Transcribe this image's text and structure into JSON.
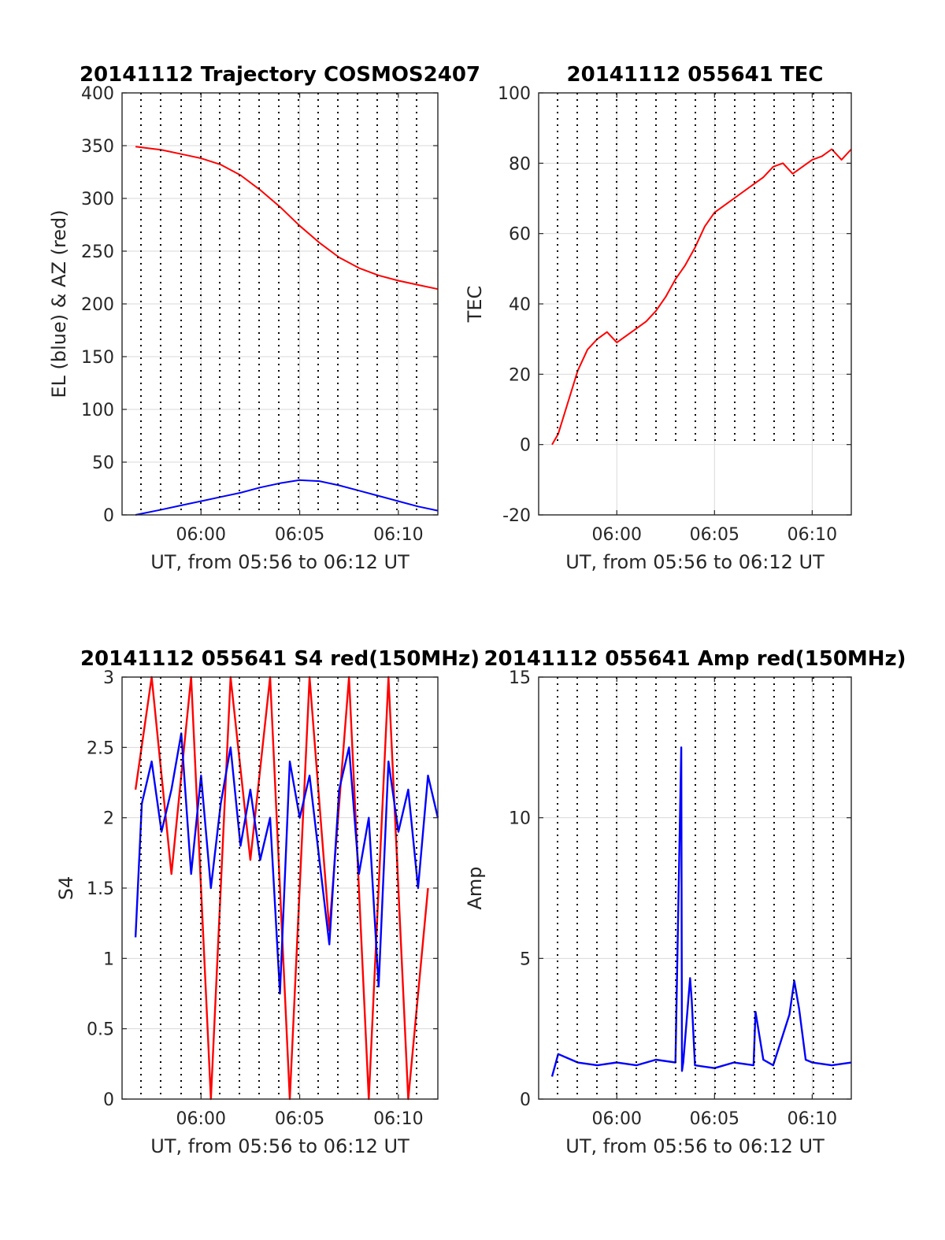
{
  "colors": {
    "elevation": "#0000ff",
    "azimuth": "#ff0000",
    "tec": "#ff0000",
    "s4_red": "#ff0000",
    "s4_blue": "#0000ff",
    "amp": "#0000ff",
    "grid": "#d9d9d9",
    "axis": "#262626"
  },
  "chart_data": [
    {
      "id": "traj",
      "type": "line",
      "title": "20141112 Trajectory COSMOS2407",
      "xlabel": "UT, from 05:56 to 06:12 UT",
      "ylabel": "EL (blue) & AZ (red)",
      "xlim": [
        "05:56",
        "06:12"
      ],
      "ylim": [
        0,
        400
      ],
      "xticks": [
        "06:00",
        "06:05",
        "06:10"
      ],
      "yticks": [
        "0",
        "50",
        "100",
        "150",
        "200",
        "250",
        "300",
        "350",
        "400"
      ],
      "grid": true,
      "series": [
        {
          "color": "red",
          "x": [
            "05:56:41",
            "05:58:00",
            "05:59:00",
            "06:00:00",
            "06:01:00",
            "06:02:00",
            "06:03:00",
            "06:04:00",
            "06:05:00",
            "06:06:00",
            "06:07:00",
            "06:08:00",
            "06:09:00",
            "06:10:00",
            "06:11:00",
            "06:12:00"
          ],
          "y": [
            349,
            346,
            342,
            338,
            332,
            322,
            308,
            292,
            274,
            258,
            244,
            234,
            227,
            222,
            218,
            214
          ]
        },
        {
          "color": "blue",
          "x": [
            "05:56:41",
            "05:58:00",
            "05:59:00",
            "06:00:00",
            "06:01:00",
            "06:02:00",
            "06:03:00",
            "06:04:00",
            "06:05:00",
            "06:06:00",
            "06:07:00",
            "06:08:00",
            "06:09:00",
            "06:10:00",
            "06:11:00",
            "06:12:00"
          ],
          "y": [
            0,
            5,
            9,
            13,
            17,
            21,
            26,
            30,
            33,
            32,
            28,
            23,
            18,
            13,
            8,
            4
          ]
        }
      ]
    },
    {
      "id": "tec",
      "type": "line",
      "title": "20141112 055641 TEC",
      "xlabel": "UT, from 05:56 to 06:12 UT",
      "ylabel": "TEC",
      "xlim": [
        "05:56",
        "06:12"
      ],
      "ylim": [
        -20,
        100
      ],
      "xticks": [
        "06:00",
        "06:05",
        "06:10"
      ],
      "yticks": [
        "-20",
        "0",
        "20",
        "40",
        "60",
        "80",
        "100"
      ],
      "grid": true,
      "series": [
        {
          "color": "red",
          "x": [
            "05:56:41",
            "05:57:00",
            "05:57:30",
            "05:58:00",
            "05:58:30",
            "05:59:00",
            "05:59:30",
            "06:00:00",
            "06:00:30",
            "06:01:00",
            "06:01:30",
            "06:02:00",
            "06:02:30",
            "06:03:00",
            "06:03:30",
            "06:04:00",
            "06:04:30",
            "06:05:00",
            "06:06:00",
            "06:07:00",
            "06:07:30",
            "06:08:00",
            "06:08:30",
            "06:09:00",
            "06:09:30",
            "06:10:00",
            "06:10:30",
            "06:11:00",
            "06:11:30",
            "06:12:00"
          ],
          "y": [
            0,
            3,
            12,
            21,
            27,
            30,
            32,
            29,
            31,
            33,
            35,
            38,
            42,
            47,
            51,
            56,
            62,
            66,
            70,
            74,
            76,
            79,
            80,
            77,
            79,
            81,
            82,
            84,
            81,
            84
          ]
        }
      ]
    },
    {
      "id": "s4",
      "type": "line",
      "title": "20141112 055641 S4 red(150MHz)",
      "xlabel": "UT, from 05:56 to 06:12 UT",
      "ylabel": "S4",
      "xlim": [
        "05:56",
        "06:12"
      ],
      "ylim": [
        0,
        3
      ],
      "xticks": [
        "06:00",
        "06:05",
        "06:10"
      ],
      "yticks": [
        "0",
        "0.5",
        "1",
        "1.5",
        "2",
        "2.5",
        "3"
      ],
      "grid": true,
      "series": [
        {
          "color": "red",
          "x": [
            "05:56:41",
            "05:57:30",
            "05:58:30",
            "05:59:30",
            "06:00:30",
            "06:01:30",
            "06:02:30",
            "06:03:30",
            "06:04:30",
            "06:05:30",
            "06:06:30",
            "06:07:30",
            "06:08:30",
            "06:09:30",
            "06:10:30",
            "06:11:30"
          ],
          "y": [
            2.2,
            3.0,
            1.6,
            3.0,
            0.0,
            3.0,
            1.7,
            3.0,
            0.0,
            3.0,
            1.2,
            3.0,
            0.0,
            3.0,
            0.0,
            1.5
          ]
        },
        {
          "color": "blue",
          "x": [
            "05:56:41",
            "05:57:00",
            "05:57:30",
            "05:58:00",
            "05:58:30",
            "05:59:00",
            "05:59:30",
            "06:00:00",
            "06:00:30",
            "06:01:00",
            "06:01:30",
            "06:02:00",
            "06:02:30",
            "06:03:00",
            "06:03:30",
            "06:04:00",
            "06:04:30",
            "06:05:00",
            "06:05:30",
            "06:06:00",
            "06:06:30",
            "06:07:00",
            "06:07:30",
            "06:08:00",
            "06:08:30",
            "06:09:00",
            "06:09:30",
            "06:10:00",
            "06:10:30",
            "06:11:00",
            "06:11:30",
            "06:12:00"
          ],
          "y": [
            1.15,
            2.1,
            2.4,
            1.9,
            2.2,
            2.6,
            1.6,
            2.3,
            1.5,
            2.1,
            2.5,
            1.8,
            2.2,
            1.7,
            2.0,
            0.75,
            2.4,
            2.0,
            2.3,
            1.7,
            1.1,
            2.2,
            2.5,
            1.6,
            2.0,
            0.8,
            2.4,
            1.9,
            2.2,
            1.5,
            2.3,
            2.0
          ]
        }
      ]
    },
    {
      "id": "amp",
      "type": "line",
      "title": "20141112 055641 Amp red(150MHz)",
      "xlabel": "UT, from 05:56 to 06:12 UT",
      "ylabel": "Amp",
      "xlim": [
        "05:56",
        "06:12"
      ],
      "ylim": [
        0,
        15
      ],
      "xticks": [
        "06:00",
        "06:05",
        "06:10"
      ],
      "yticks": [
        "0",
        "5",
        "10",
        "15"
      ],
      "grid": true,
      "series": [
        {
          "color": "blue",
          "x": [
            "05:56:41",
            "05:57:00",
            "05:58:00",
            "05:59:00",
            "06:00:00",
            "06:01:00",
            "06:02:00",
            "06:03:00",
            "06:03:18",
            "06:03:20",
            "06:03:24",
            "06:03:45",
            "06:03:50",
            "06:04:00",
            "06:05:00",
            "06:06:00",
            "06:07:00",
            "06:07:06",
            "06:07:30",
            "06:08:00",
            "06:08:50",
            "06:09:05",
            "06:09:20",
            "06:09:40",
            "06:10:00",
            "06:11:00",
            "06:12:00"
          ],
          "y": [
            0.8,
            1.6,
            1.3,
            1.2,
            1.3,
            1.2,
            1.4,
            1.3,
            12.5,
            1.0,
            1.3,
            4.3,
            3.5,
            1.2,
            1.1,
            1.3,
            1.2,
            3.1,
            1.4,
            1.2,
            3.0,
            4.2,
            3.2,
            1.4,
            1.3,
            1.2,
            1.3
          ]
        }
      ]
    }
  ]
}
